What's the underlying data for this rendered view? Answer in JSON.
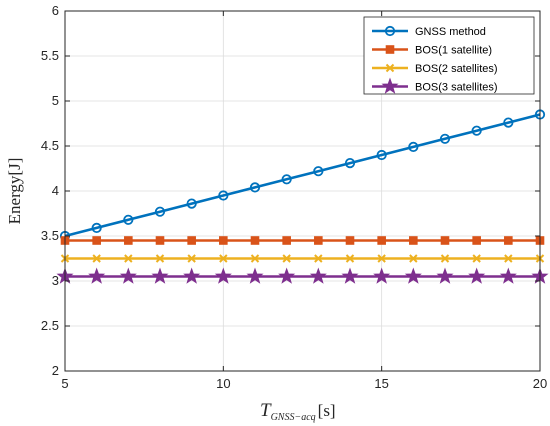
{
  "chart_data": {
    "type": "line",
    "xlabel_main": "T",
    "xlabel_sub": "GNSS−acq",
    "xlabel_unit": "[s]",
    "ylabel": "Energy[J]",
    "xlim": [
      5,
      20
    ],
    "ylim": [
      2,
      6
    ],
    "xticks": [
      5,
      10,
      15,
      20
    ],
    "yticks": [
      2,
      2.5,
      3,
      3.5,
      4,
      4.5,
      5,
      5.5,
      6
    ],
    "grid": true,
    "legend_position": "top-right",
    "x": [
      5,
      6,
      7,
      8,
      9,
      10,
      11,
      12,
      13,
      14,
      15,
      16,
      17,
      18,
      19,
      20
    ],
    "series": [
      {
        "name": "GNSS method",
        "color": "#0072BD",
        "marker": "circle",
        "values": [
          3.5,
          3.59,
          3.68,
          3.77,
          3.86,
          3.95,
          4.04,
          4.13,
          4.22,
          4.31,
          4.4,
          4.49,
          4.58,
          4.67,
          4.76,
          4.85
        ]
      },
      {
        "name": "BOS(1 satellite)",
        "color": "#D95319",
        "marker": "square",
        "values": [
          3.45,
          3.45,
          3.45,
          3.45,
          3.45,
          3.45,
          3.45,
          3.45,
          3.45,
          3.45,
          3.45,
          3.45,
          3.45,
          3.45,
          3.45,
          3.45
        ]
      },
      {
        "name": "BOS(2 satellites)",
        "color": "#EDB120",
        "marker": "x",
        "values": [
          3.25,
          3.25,
          3.25,
          3.25,
          3.25,
          3.25,
          3.25,
          3.25,
          3.25,
          3.25,
          3.25,
          3.25,
          3.25,
          3.25,
          3.25,
          3.25
        ]
      },
      {
        "name": "BOS(3 satellites)",
        "color": "#7E2F8E",
        "marker": "star",
        "values": [
          3.05,
          3.05,
          3.05,
          3.05,
          3.05,
          3.05,
          3.05,
          3.05,
          3.05,
          3.05,
          3.05,
          3.05,
          3.05,
          3.05,
          3.05,
          3.05
        ]
      }
    ]
  }
}
